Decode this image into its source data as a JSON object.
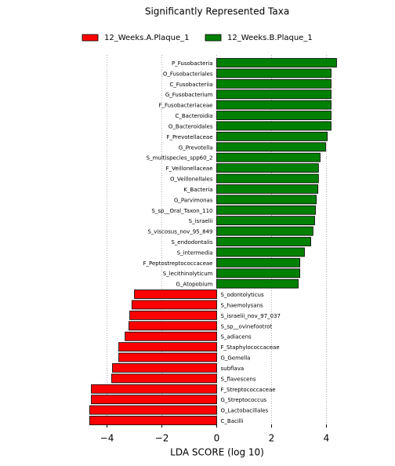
{
  "chart_data": {
    "type": "barh",
    "title": "Significantly Represented Taxa",
    "xlabel": "LDA SCORE (log 10)",
    "xlim": [
      -4.7,
      4.5
    ],
    "xticks": [
      {
        "value": -4,
        "label": "−4"
      },
      {
        "value": -2,
        "label": "−2"
      },
      0,
      2,
      4
    ],
    "grid": true,
    "series": [
      {
        "name": "12_Weeks.A.Plaque_1",
        "color": "#ff0000",
        "categories": [
          "S_odontolyticus",
          "S_haemolysans",
          "S_israelii_nov_97_037",
          "S_sp__ovinefootrot",
          "S_adiacens",
          "F_Staphylococcaceae",
          "G_Gemella",
          "subflava",
          "S_flavescens",
          "F_Streptococcaceae",
          "G_Streptococcus",
          "O_Lactobacillales",
          "C_Bacilli"
        ],
        "values": [
          -3.0,
          -3.09,
          -3.17,
          -3.2,
          -3.34,
          -3.57,
          -3.57,
          -3.8,
          -3.83,
          -4.57,
          -4.57,
          -4.63,
          -4.63
        ]
      },
      {
        "name": "12_Weeks.B.Plaque_1",
        "color": "#008000",
        "categories": [
          "P_Fusobacteria",
          "O_Fusobacteriales",
          "C_Fusobacteriia",
          "G_Fusobacterium",
          "F_Fusobacteriaceae",
          "C_Bacteroidia",
          "O_Bacteroidales",
          "F_Prevotellaceae",
          "G_Prevotella",
          "S_multispecies_spp60_2",
          "F_Veillonellaceae",
          "O_Veillonellales",
          "K_Bacteria",
          "G_Parvimonas",
          "S_sp__Oral_Taxon_110",
          "S_israelii",
          "S_viscosus_nov_95_849",
          "S_endodontalis",
          "S_intermedia",
          "F_Peptostreptococcaceae",
          "S_lecithinolyticum",
          "G_Atopobium"
        ],
        "values": [
          4.37,
          4.17,
          4.17,
          4.17,
          4.17,
          4.17,
          4.17,
          4.03,
          3.97,
          3.77,
          3.71,
          3.71,
          3.69,
          3.63,
          3.6,
          3.57,
          3.51,
          3.43,
          3.2,
          3.03,
          3.03,
          2.97
        ]
      }
    ]
  }
}
